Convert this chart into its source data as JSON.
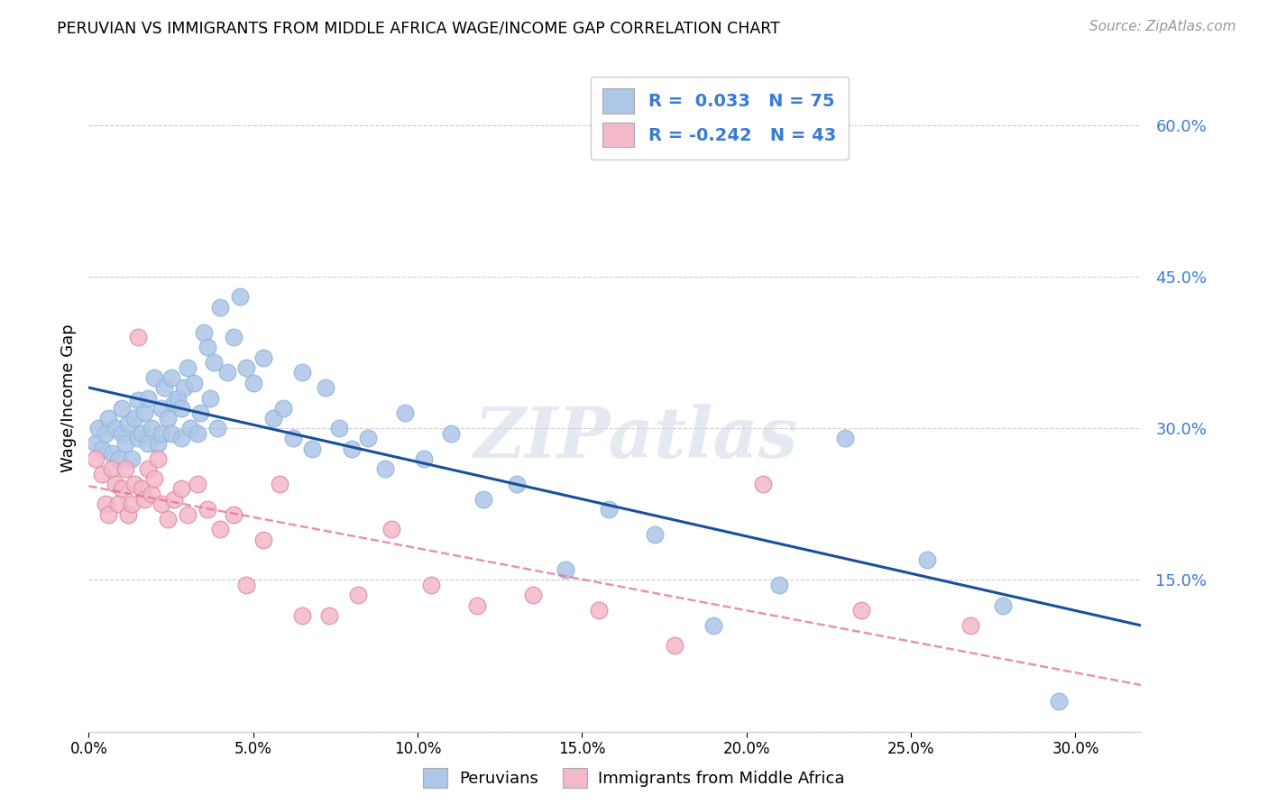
{
  "title": "PERUVIAN VS IMMIGRANTS FROM MIDDLE AFRICA WAGE/INCOME GAP CORRELATION CHART",
  "source": "Source: ZipAtlas.com",
  "ylabel": "Wage/Income Gap",
  "yticks": [
    0.0,
    0.15,
    0.3,
    0.45,
    0.6
  ],
  "ytick_labels": [
    "",
    "15.0%",
    "30.0%",
    "45.0%",
    "60.0%"
  ],
  "xticks": [
    0.0,
    0.05,
    0.1,
    0.15,
    0.2,
    0.25,
    0.3
  ],
  "xtick_labels": [
    "0.0%",
    "5.0%",
    "10.0%",
    "15.0%",
    "20.0%",
    "25.0%",
    "30.0%"
  ],
  "xlim": [
    0.0,
    0.32
  ],
  "ylim": [
    0.0,
    0.66
  ],
  "blue_R": 0.033,
  "blue_N": 75,
  "pink_R": -0.242,
  "pink_N": 43,
  "blue_color": "#aec6e8",
  "pink_color": "#f4b8c8",
  "blue_line_color": "#1a4f9c",
  "pink_line_color": "#e07090",
  "legend_label_blue": "Peruvians",
  "legend_label_pink": "Immigrants from Middle Africa",
  "watermark": "ZIPatlas",
  "blue_scatter_x": [
    0.002,
    0.003,
    0.004,
    0.005,
    0.006,
    0.007,
    0.008,
    0.009,
    0.01,
    0.01,
    0.011,
    0.012,
    0.013,
    0.014,
    0.015,
    0.015,
    0.016,
    0.017,
    0.018,
    0.018,
    0.019,
    0.02,
    0.021,
    0.022,
    0.022,
    0.023,
    0.024,
    0.025,
    0.025,
    0.026,
    0.027,
    0.028,
    0.028,
    0.029,
    0.03,
    0.031,
    0.032,
    0.033,
    0.034,
    0.035,
    0.036,
    0.037,
    0.038,
    0.039,
    0.04,
    0.042,
    0.044,
    0.046,
    0.048,
    0.05,
    0.053,
    0.056,
    0.059,
    0.062,
    0.065,
    0.068,
    0.072,
    0.076,
    0.08,
    0.085,
    0.09,
    0.096,
    0.102,
    0.11,
    0.12,
    0.13,
    0.145,
    0.158,
    0.172,
    0.19,
    0.21,
    0.23,
    0.255,
    0.278,
    0.295
  ],
  "blue_scatter_y": [
    0.285,
    0.3,
    0.28,
    0.295,
    0.31,
    0.275,
    0.3,
    0.27,
    0.32,
    0.295,
    0.285,
    0.305,
    0.27,
    0.31,
    0.29,
    0.328,
    0.295,
    0.315,
    0.285,
    0.33,
    0.3,
    0.35,
    0.285,
    0.32,
    0.295,
    0.34,
    0.31,
    0.295,
    0.35,
    0.325,
    0.33,
    0.32,
    0.29,
    0.34,
    0.36,
    0.3,
    0.345,
    0.295,
    0.315,
    0.395,
    0.38,
    0.33,
    0.365,
    0.3,
    0.42,
    0.355,
    0.39,
    0.43,
    0.36,
    0.345,
    0.37,
    0.31,
    0.32,
    0.29,
    0.355,
    0.28,
    0.34,
    0.3,
    0.28,
    0.29,
    0.26,
    0.315,
    0.27,
    0.295,
    0.23,
    0.245,
    0.16,
    0.22,
    0.195,
    0.105,
    0.145,
    0.29,
    0.17,
    0.125,
    0.03
  ],
  "pink_scatter_x": [
    0.002,
    0.004,
    0.005,
    0.006,
    0.007,
    0.008,
    0.009,
    0.01,
    0.011,
    0.012,
    0.013,
    0.014,
    0.015,
    0.016,
    0.017,
    0.018,
    0.019,
    0.02,
    0.021,
    0.022,
    0.024,
    0.026,
    0.028,
    0.03,
    0.033,
    0.036,
    0.04,
    0.044,
    0.048,
    0.053,
    0.058,
    0.065,
    0.073,
    0.082,
    0.092,
    0.104,
    0.118,
    0.135,
    0.155,
    0.178,
    0.205,
    0.235,
    0.268
  ],
  "pink_scatter_y": [
    0.27,
    0.255,
    0.225,
    0.215,
    0.26,
    0.245,
    0.225,
    0.24,
    0.26,
    0.215,
    0.225,
    0.245,
    0.39,
    0.24,
    0.23,
    0.26,
    0.235,
    0.25,
    0.27,
    0.225,
    0.21,
    0.23,
    0.24,
    0.215,
    0.245,
    0.22,
    0.2,
    0.215,
    0.145,
    0.19,
    0.245,
    0.115,
    0.115,
    0.135,
    0.2,
    0.145,
    0.125,
    0.135,
    0.12,
    0.085,
    0.245,
    0.12,
    0.105
  ]
}
